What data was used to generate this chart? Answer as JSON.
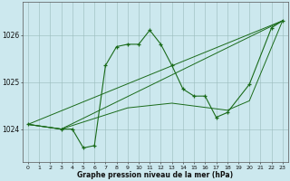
{
  "bg_color": "#cce8ee",
  "grid_color": "#99bbbb",
  "line_color": "#1a6b1a",
  "title": "Graphe pression niveau de la mer (hPa)",
  "ylim": [
    1023.3,
    1026.7
  ],
  "ytick_values": [
    1024,
    1025,
    1026
  ],
  "xtick_labels": [
    "0",
    "1",
    "2",
    "3",
    "4",
    "5",
    "6",
    "7",
    "8",
    "9",
    "10",
    "11",
    "12",
    "13",
    "14",
    "15",
    "16",
    "17",
    "18",
    "19",
    "20",
    "21",
    "22",
    "23"
  ],
  "line_main": {
    "x": [
      0,
      3,
      4,
      5,
      6,
      7,
      8,
      9,
      10,
      11,
      12,
      13,
      14,
      15,
      16,
      17,
      18,
      20,
      22,
      23
    ],
    "y": [
      1024.1,
      1024.0,
      1024.0,
      1023.6,
      1023.65,
      1025.35,
      1025.75,
      1025.8,
      1025.8,
      1026.1,
      1025.8,
      1025.35,
      1024.85,
      1024.7,
      1024.7,
      1024.25,
      1024.35,
      1024.95,
      1026.15,
      1026.3
    ]
  },
  "line_trend1": {
    "x": [
      0,
      23
    ],
    "y": [
      1024.1,
      1026.3
    ]
  },
  "line_trend2": {
    "x": [
      0,
      3,
      23
    ],
    "y": [
      1024.1,
      1024.0,
      1026.3
    ]
  },
  "line_trend3": {
    "x": [
      0,
      3,
      9,
      13,
      18,
      20,
      23
    ],
    "y": [
      1024.1,
      1024.0,
      1024.45,
      1024.55,
      1024.4,
      1024.6,
      1026.3
    ]
  }
}
